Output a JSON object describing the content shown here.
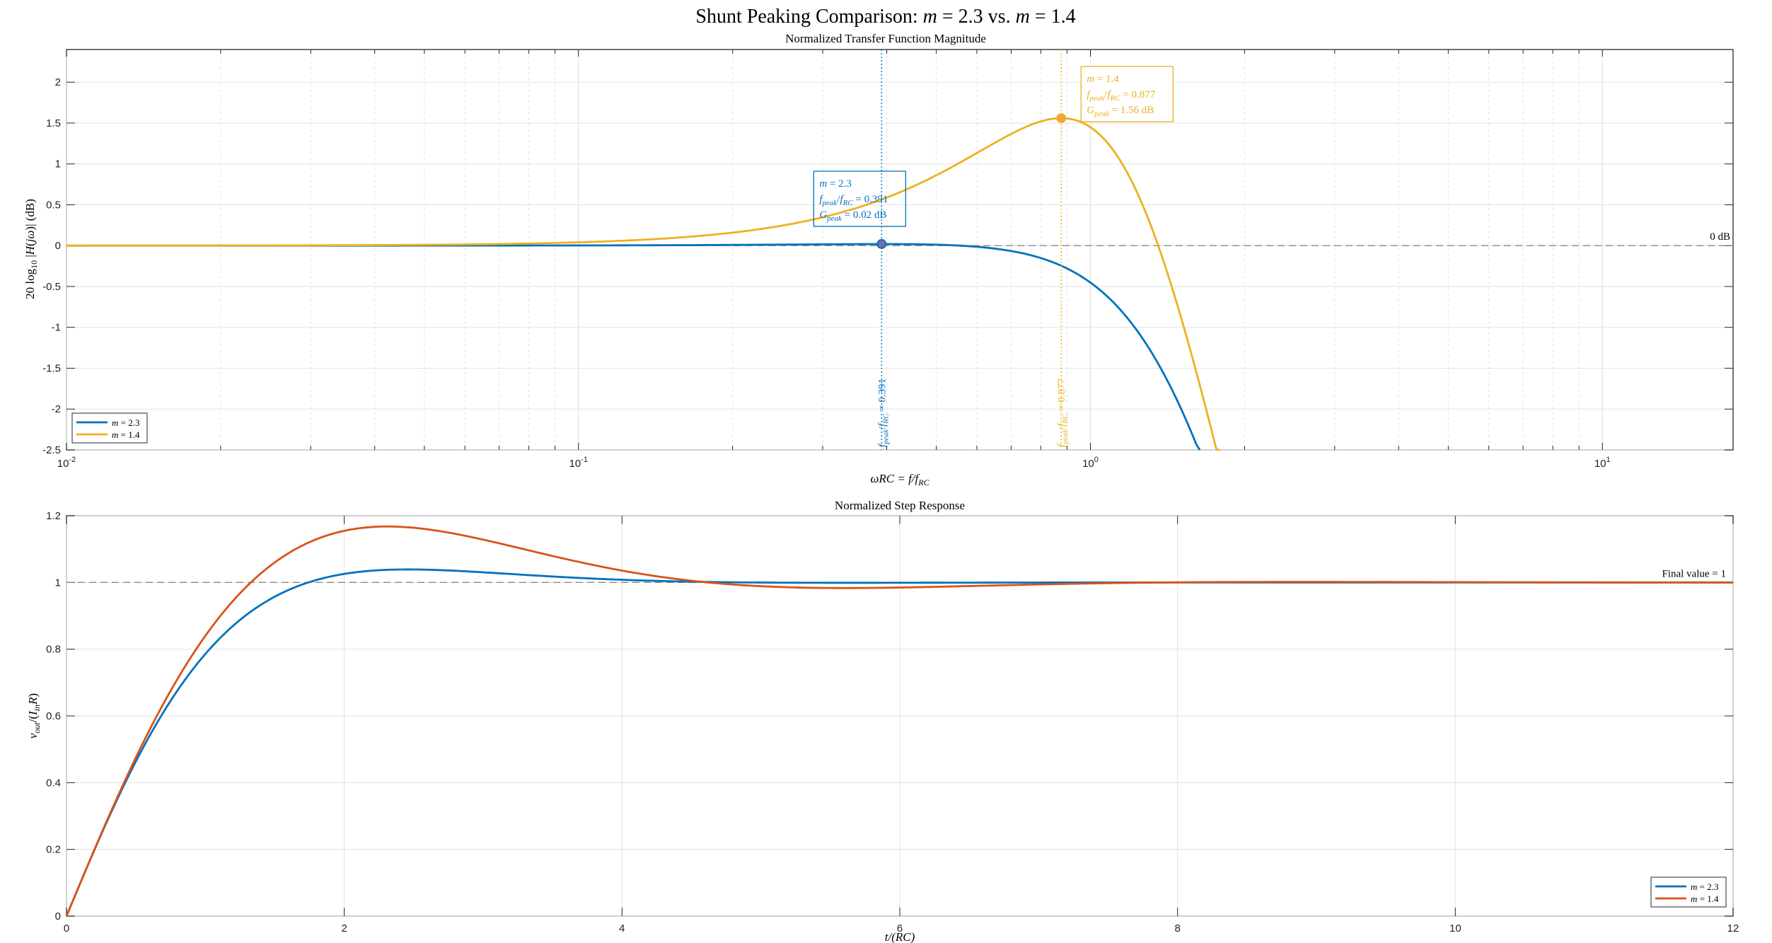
{
  "figure": {
    "title": "Shunt Peaking Comparison: m = 2.3 vs. m = 1.4",
    "title_parts": [
      "Shunt Peaking Comparison: ",
      "m",
      " = 2.3 vs. ",
      "m",
      " = 1.4"
    ]
  },
  "colors": {
    "blue": "#0072BD",
    "yellow": "#EDB120",
    "orange": "#D95319",
    "grid": "#e3e3e3",
    "ref": "#888888"
  },
  "chart_data": [
    {
      "type": "line",
      "title": "Normalized Transfer Function Magnitude",
      "xlabel": "ωRC = f/f_RC",
      "ylabel": "20 log10 |H(jω)| (dB)",
      "xscale": "log",
      "xlim": [
        0.01,
        18
      ],
      "ylim": [
        -2.5,
        2.4
      ],
      "grid": true,
      "legend_location": "bottom-left",
      "x_tick_labels": [
        "10^-2",
        "10^-1",
        "10^0",
        "10^1"
      ],
      "y_tick_labels": [
        "2",
        "1.5",
        "1",
        "0.5",
        "0",
        "-0.5",
        "-1",
        "-1.5",
        "-2",
        "-2.5"
      ],
      "series": [
        {
          "name": "m = 2.3",
          "m": 2.3,
          "color": "#0072BD",
          "samples": 500
        },
        {
          "name": "m = 1.4",
          "m": 1.4,
          "color": "#EDB120",
          "samples": 500
        }
      ],
      "reference_line": {
        "y": 0,
        "label": "0 dB"
      },
      "peaks": [
        {
          "series": "m = 2.3",
          "x": 0.391,
          "y": 0.02,
          "color": "#0072BD",
          "vline_label": "f_peak/f_RC = 0.391",
          "box_lines": [
            "m = 2.3",
            "f_peak/f_RC = 0.391",
            "G_peak = 0.02 dB"
          ]
        },
        {
          "series": "m = 1.4",
          "x": 0.877,
          "y": 1.56,
          "color": "#EDB120",
          "vline_label": "f_peak/f_RC = 0.877",
          "box_lines": [
            "m = 1.4",
            "f_peak/f_RC = 0.877",
            "G_peak = 1.56 dB"
          ]
        }
      ]
    },
    {
      "type": "line",
      "title": "Normalized Step Response",
      "xlabel": "t/(RC)",
      "ylabel": "v_out/(I_in R)",
      "xlim": [
        0,
        12
      ],
      "ylim": [
        0,
        1.2
      ],
      "grid": true,
      "legend_location": "bottom-right",
      "x_tick_labels": [
        "0",
        "2",
        "4",
        "6",
        "8",
        "10",
        "12"
      ],
      "y_tick_labels": [
        "1.2",
        "1",
        "0.8",
        "0.6",
        "0.4",
        "0.2",
        "0"
      ],
      "series": [
        {
          "name": "m = 2.3",
          "m": 2.3,
          "color": "#0072BD",
          "samples": 600
        },
        {
          "name": "m = 1.4",
          "m": 1.4,
          "color": "#D95319",
          "samples": 600
        }
      ],
      "reference_line": {
        "y": 1,
        "label": "Final  value = 1"
      }
    }
  ]
}
